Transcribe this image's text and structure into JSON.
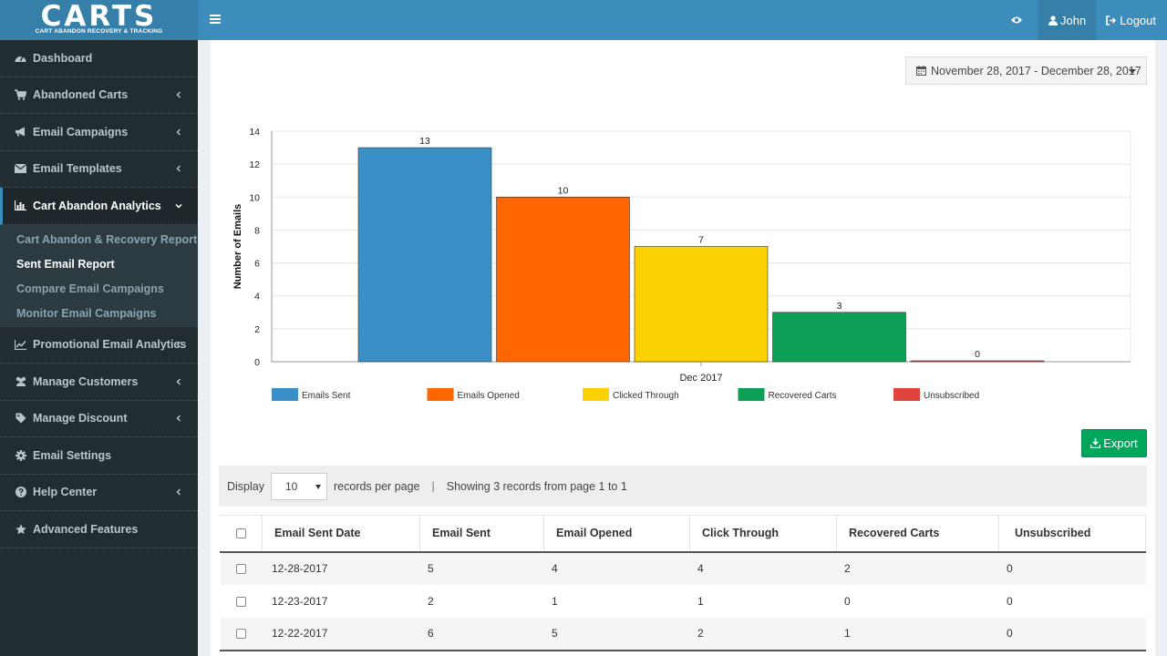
{
  "brand": {
    "name": "CARTS",
    "tagline": "CART ABANDON RECOVERY & TRACKING"
  },
  "topnav": {
    "user_label": "John",
    "logout_label": "Logout"
  },
  "sidebar": {
    "items": [
      {
        "label": "Dashboard",
        "icon": "dashboard-icon"
      },
      {
        "label": "Abandoned Carts",
        "icon": "cart-icon"
      },
      {
        "label": "Email Campaigns",
        "icon": "bullhorn-icon"
      },
      {
        "label": "Email Templates",
        "icon": "envelope-icon"
      },
      {
        "label": "Cart Abandon Analytics",
        "icon": "bar-chart-icon"
      },
      {
        "label": "Promotional Email Analytics",
        "icon": "line-chart-icon"
      },
      {
        "label": "Manage Customers",
        "icon": "users-icon"
      },
      {
        "label": "Manage Discount",
        "icon": "tag-icon"
      },
      {
        "label": "Email Settings",
        "icon": "gear-icon"
      },
      {
        "label": "Help Center",
        "icon": "question-icon"
      },
      {
        "label": "Advanced Features",
        "icon": "star-icon"
      }
    ],
    "submenu": [
      {
        "label": "Cart Abandon & Recovery Report"
      },
      {
        "label": "Sent Email Report"
      },
      {
        "label": "Compare Email Campaigns"
      },
      {
        "label": "Monitor Email Campaigns"
      }
    ]
  },
  "daterange": {
    "label": "November 28, 2017 - December 28, 2017"
  },
  "chart_data": {
    "type": "bar",
    "categories": [
      "Dec 2017"
    ],
    "series": [
      {
        "name": "Emails Sent",
        "values": [
          13
        ],
        "color": "#3a8fc7"
      },
      {
        "name": "Emails Opened",
        "values": [
          10
        ],
        "color": "#ff6600"
      },
      {
        "name": "Clicked Through",
        "values": [
          7
        ],
        "color": "#fcd202"
      },
      {
        "name": "Recovered Carts",
        "values": [
          3
        ],
        "color": "#0d9f55"
      },
      {
        "name": "Unsubscribed",
        "values": [
          0
        ],
        "color": "#e0443c"
      }
    ],
    "ylabel": "Number of Emails",
    "ylim": [
      0,
      14
    ],
    "yticks": [
      "0",
      "2",
      "4",
      "6",
      "8",
      "10",
      "12",
      "14"
    ],
    "grid": true,
    "legend": "bottom"
  },
  "export": {
    "label": "Export"
  },
  "toolbar": {
    "display_label": "Display",
    "per_page_value": "10",
    "records_label": "records per page",
    "separator": "|",
    "showing_text": "Showing 3 records from page 1 to 1"
  },
  "table": {
    "headers": [
      "Email Sent Date",
      "Email Sent",
      "Email Opened",
      "Click Through",
      "Recovered Carts",
      "Unsubscribed"
    ],
    "rows": [
      [
        "12-28-2017",
        "5",
        "4",
        "4",
        "2",
        "0"
      ],
      [
        "12-23-2017",
        "2",
        "1",
        "1",
        "0",
        "0"
      ],
      [
        "12-22-2017",
        "6",
        "5",
        "2",
        "1",
        "0"
      ]
    ]
  }
}
